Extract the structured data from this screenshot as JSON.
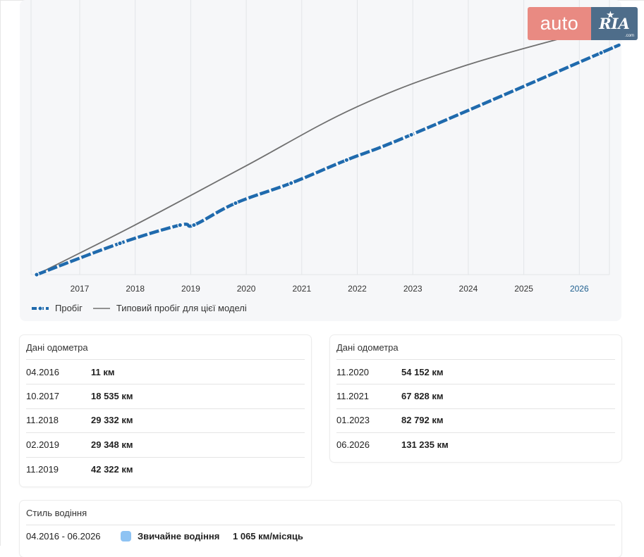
{
  "chart_data": {
    "type": "line",
    "x_ticks": [
      "2017",
      "2018",
      "2019",
      "2020",
      "2021",
      "2022",
      "2023",
      "2024",
      "2025",
      "2026"
    ],
    "highlight_tick": "2026",
    "series": [
      {
        "name": "Пробіг",
        "color": "#1f6aad",
        "style": "thick dashed with point markers",
        "points": [
          {
            "date": "04.2016",
            "km": 11
          },
          {
            "date": "10.2017",
            "km": 18535
          },
          {
            "date": "11.2018",
            "km": 29332
          },
          {
            "date": "02.2019",
            "km": 29348
          },
          {
            "date": "11.2019",
            "km": 42322
          },
          {
            "date": "11.2020",
            "km": 54152
          },
          {
            "date": "11.2021",
            "km": 67828
          },
          {
            "date": "01.2023",
            "km": 82792
          },
          {
            "date": "06.2026",
            "km": 131235
          }
        ]
      },
      {
        "name": "Типовий пробіг для цієї моделі",
        "color": "#707070",
        "style": "thin solid",
        "points": [
          {
            "date": "04.2016",
            "km": 0
          },
          {
            "date": "01.2018",
            "km": 29000
          },
          {
            "date": "01.2020",
            "km": 64000
          },
          {
            "date": "01.2022",
            "km": 99000
          },
          {
            "date": "01.2024",
            "km": 124000
          },
          {
            "date": "06.2026",
            "km": 146000
          }
        ]
      }
    ],
    "ylim_km": [
      0,
      150000
    ],
    "grid": "vertical",
    "legend_position": "bottom-left"
  },
  "legend": {
    "mileage_label": "Пробіг",
    "typical_label": "Типовий пробіг для цієї моделі"
  },
  "logo": {
    "left_text": "auto",
    "right_text": "RIA",
    "com_text": ".com"
  },
  "odometer_left": {
    "title": "Дані одометра",
    "rows": [
      {
        "date": "04.2016",
        "value": "11 км"
      },
      {
        "date": "10.2017",
        "value": "18 535 км"
      },
      {
        "date": "11.2018",
        "value": "29 332 км"
      },
      {
        "date": "02.2019",
        "value": "29 348 км"
      },
      {
        "date": "11.2019",
        "value": "42 322 км"
      }
    ]
  },
  "odometer_right": {
    "title": "Дані одометра",
    "rows": [
      {
        "date": "11.2020",
        "value": "54 152 км"
      },
      {
        "date": "11.2021",
        "value": "67 828 км"
      },
      {
        "date": "01.2023",
        "value": "82 792 км"
      },
      {
        "date": "06.2026",
        "value": "131 235 км"
      }
    ]
  },
  "driving_style": {
    "title": "Стиль водіння",
    "period": "04.2016 - 06.2026",
    "style_label": "Звичайне водіння",
    "rate": "1 065 км/місяць",
    "swatch_color": "#8ec3f3"
  }
}
